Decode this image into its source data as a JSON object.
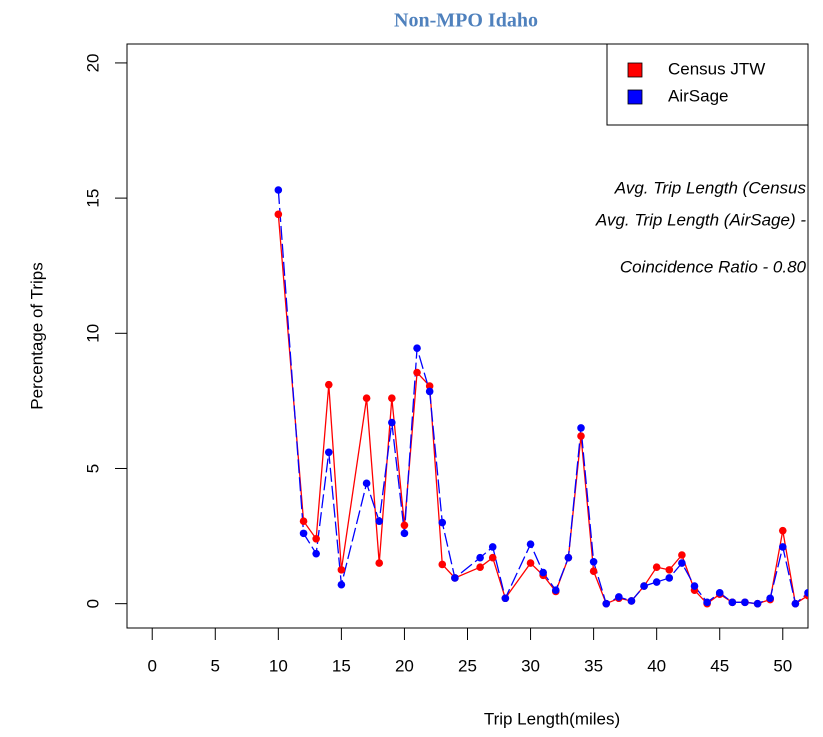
{
  "chart_data": {
    "type": "line",
    "title": "Non-MPO Idaho",
    "x_label": "Trip Length(miles)",
    "y_label": "Percentage of Trips",
    "x": [
      10,
      12,
      13,
      14,
      15,
      17,
      18,
      19,
      20,
      21,
      22,
      23,
      24,
      26,
      27,
      28,
      30,
      31,
      32,
      33,
      34,
      35,
      36,
      37,
      38,
      39,
      40,
      41,
      42,
      43,
      44,
      45,
      46,
      47,
      48,
      49,
      50,
      51,
      52
    ],
    "series": [
      {
        "name": "Census JTW",
        "color": "#ff0000",
        "dash": false,
        "values": [
          14.4,
          3.05,
          2.4,
          8.1,
          1.25,
          7.6,
          1.5,
          7.6,
          2.9,
          8.55,
          8.05,
          1.45,
          0.95,
          1.35,
          1.7,
          0.2,
          1.5,
          1.05,
          0.45,
          1.7,
          6.2,
          1.2,
          0,
          0.2,
          0.1,
          0.65,
          1.35,
          1.25,
          1.8,
          0.5,
          0,
          0.35,
          0.05,
          0.05,
          0,
          0.15,
          2.7,
          0,
          0.3
        ]
      },
      {
        "name": "AirSage",
        "color": "#0000ff",
        "dash": true,
        "values": [
          15.3,
          2.6,
          1.85,
          5.6,
          0.7,
          4.45,
          3.05,
          6.7,
          2.6,
          9.45,
          7.85,
          3.0,
          0.95,
          1.7,
          2.1,
          0.2,
          2.2,
          1.15,
          0.5,
          1.7,
          6.5,
          1.55,
          0,
          0.25,
          0.1,
          0.65,
          0.8,
          0.95,
          1.5,
          0.65,
          0.05,
          0.4,
          0.05,
          0.05,
          0,
          0.2,
          2.1,
          0,
          0.4
        ]
      }
    ],
    "annotations": [
      "Avg. Trip Length (Census",
      "Avg. Trip Length (AirSage) -",
      "Coincidence Ratio - 0.80"
    ],
    "xlim": [
      -2,
      52
    ],
    "xticks": [
      0,
      5,
      10,
      15,
      20,
      25,
      30,
      35,
      40,
      45,
      50
    ],
    "ylim": [
      -0.9,
      20.7
    ],
    "yticks": [
      0,
      5,
      10,
      15,
      20
    ],
    "legend": "topright",
    "grid": false
  }
}
